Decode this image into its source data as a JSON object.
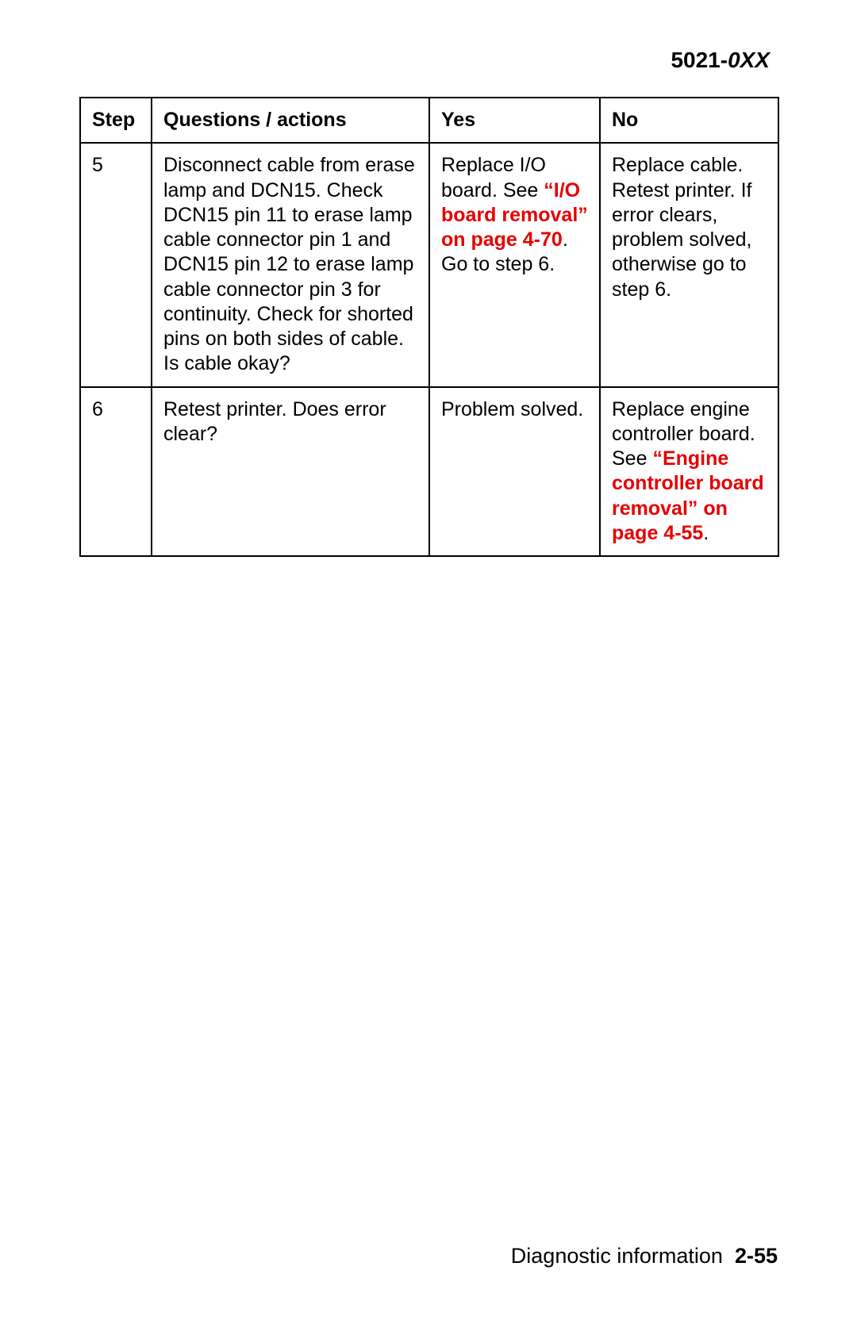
{
  "header": {
    "prefix": "5021-",
    "suffix": "0XX"
  },
  "table": {
    "columns": [
      "Step",
      "Questions / actions",
      "Yes",
      "No"
    ],
    "rows": [
      {
        "step": "5",
        "question": "Disconnect cable from erase lamp and DCN15. Check DCN15 pin 11 to erase lamp cable connector pin 1 and DCN15 pin 12 to erase lamp cable connector pin 3 for continuity. Check for shorted pins on both sides of cable. Is cable okay?",
        "yes_pre": "Replace I/O board. See ",
        "yes_link": "“I/O board removal” on page 4-70",
        "yes_post": ". Go to step 6.",
        "no_pre": "Replace cable. Retest printer. If error clears, problem solved, otherwise go to step 6.",
        "no_link": "",
        "no_post": ""
      },
      {
        "step": "6",
        "question": "Retest printer. Does error clear?",
        "yes_pre": "Problem solved.",
        "yes_link": "",
        "yes_post": "",
        "no_pre": "Replace engine controller board. See ",
        "no_link": "“Engine controller board removal” on page 4-55",
        "no_post": "."
      }
    ]
  },
  "footer": {
    "text": "Diagnostic information",
    "page": "2-55"
  },
  "colors": {
    "link_red": "#e60000",
    "text_black": "#000000",
    "background": "#ffffff"
  }
}
